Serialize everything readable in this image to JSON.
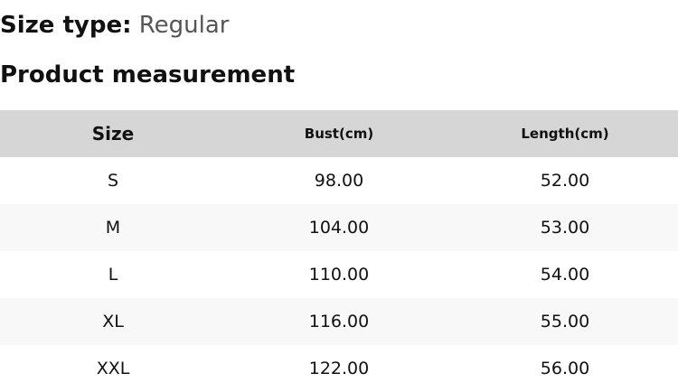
{
  "size_type": {
    "label": "Size type:",
    "value": "Regular"
  },
  "title": "Product measurement",
  "table": {
    "headers": [
      "Size",
      "Bust(cm)",
      "Length(cm)"
    ],
    "rows": [
      [
        "S",
        "98.00",
        "52.00"
      ],
      [
        "M",
        "104.00",
        "53.00"
      ],
      [
        "L",
        "110.00",
        "54.00"
      ],
      [
        "XL",
        "116.00",
        "55.00"
      ],
      [
        "XXL",
        "122.00",
        "56.00"
      ]
    ]
  }
}
